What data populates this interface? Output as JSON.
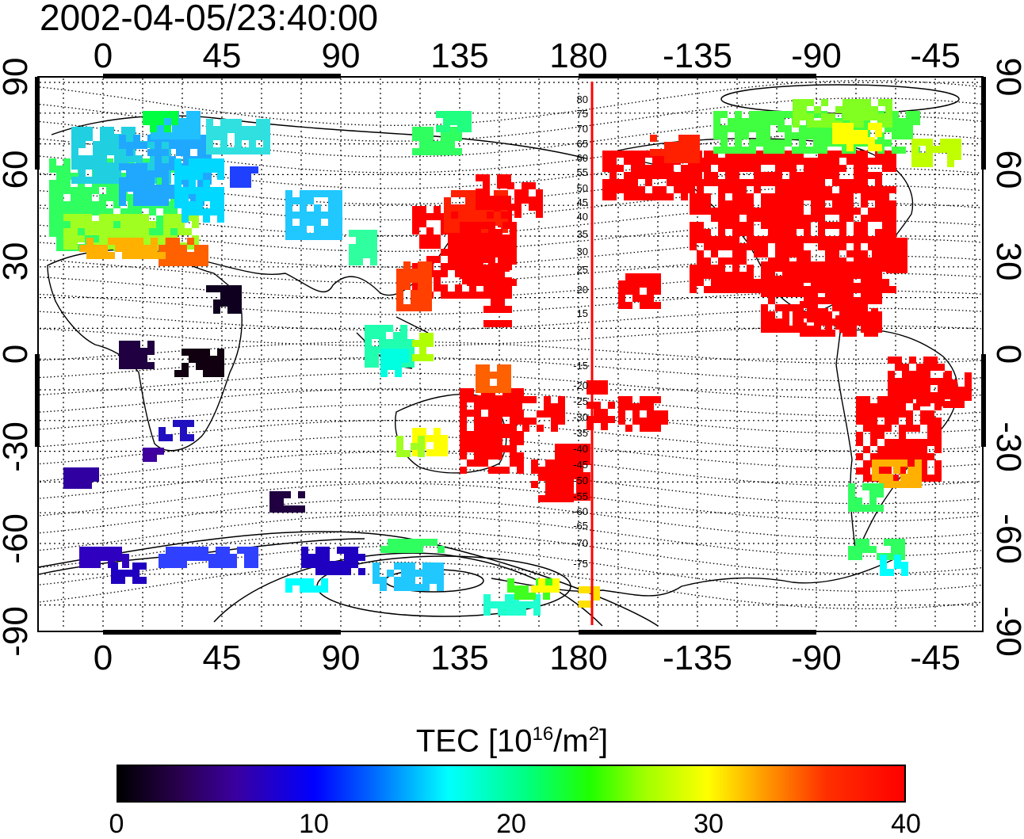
{
  "title": "2002-04-05/23:40:00",
  "axes": {
    "lon_ticks": [
      "0",
      "45",
      "90",
      "135",
      "180",
      "-135",
      "-90",
      "-45"
    ],
    "lat_ticks": [
      "90",
      "60",
      "30",
      "0",
      "-30",
      "-60",
      "-90"
    ]
  },
  "contour_labels_north": [
    "80",
    "75",
    "70",
    "65",
    "60",
    "55",
    "50",
    "45",
    "40",
    "35",
    "30",
    "25",
    "20",
    "15"
  ],
  "contour_labels_south": [
    "-15",
    "-20",
    "-25",
    "-30",
    "-35",
    "-40",
    "-45",
    "-50",
    "-55",
    "-60",
    "-65",
    "-70",
    "-75"
  ],
  "colorbar": {
    "title_main": "TEC  [10",
    "title_sup1": "16",
    "title_mid": "/m",
    "title_sup2": "2",
    "title_end": "]",
    "labels": [
      "0",
      "10",
      "20",
      "30",
      "40"
    ],
    "min": 0,
    "max": 40
  },
  "colors": {
    "terminator": "#ff0000",
    "high_tec": "#ff0000"
  }
}
